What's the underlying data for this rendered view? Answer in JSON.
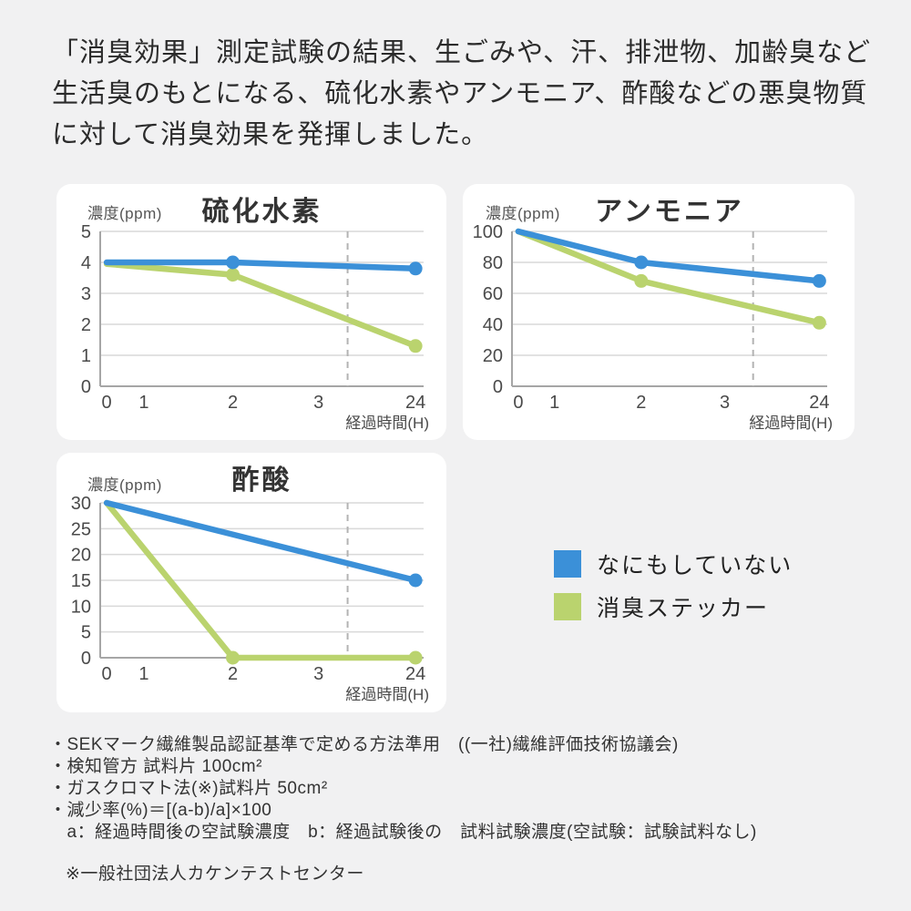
{
  "page": {
    "background": "#F1F1F2",
    "card_background": "#FFFFFF"
  },
  "header": {
    "text": "「消臭効果」測定試験の結果、生ごみや、汗、排泄物、加齢臭など生活臭のもとになる、硫化水素やアンモニア、酢酸などの悪臭物質に対して消臭効果を発揮しました。"
  },
  "colors": {
    "untreated_blue": "#3B90D8",
    "sticker_green": "#BAD36E",
    "grid": "#D9D9D9",
    "axis": "#A6A6A6",
    "dash": "#B3B3B3",
    "tick_text": "#4A4A4A"
  },
  "legend": {
    "items": [
      {
        "label": "なにもしていない",
        "color": "#3B90D8"
      },
      {
        "label": "消臭ステッカー",
        "color": "#BAD36E"
      }
    ]
  },
  "chart_data": [
    {
      "type": "line",
      "title": "硫化水素",
      "ylabel": "濃度(ppm)",
      "xlabel": "経過時間(H)",
      "ylim": [
        0,
        5
      ],
      "yticks": [
        0,
        1,
        2,
        3,
        4,
        5
      ],
      "xticks": [
        0,
        1,
        2,
        3,
        24
      ],
      "x_positions": {
        "0": 0.02,
        "1": 0.135,
        "2": 0.41,
        "3": 0.675,
        "24": 0.975
      },
      "dashed_x": 0.765,
      "grid": true,
      "legend_position": "external",
      "series": [
        {
          "name": "なにもしていない",
          "color": "#3B90D8",
          "x": [
            0,
            2,
            24
          ],
          "values": [
            4,
            4,
            3.8
          ],
          "markers": [
            2,
            24
          ]
        },
        {
          "name": "消臭ステッカー",
          "color": "#BAD36E",
          "x": [
            0,
            2,
            24
          ],
          "values": [
            3.95,
            3.6,
            1.3
          ],
          "markers": [
            2,
            24
          ]
        }
      ]
    },
    {
      "type": "line",
      "title": "アンモニア",
      "ylabel": "濃度(ppm)",
      "xlabel": "経過時間(H)",
      "ylim": [
        0,
        100
      ],
      "yticks": [
        0,
        20,
        40,
        60,
        80,
        100
      ],
      "xticks": [
        0,
        1,
        2,
        3,
        24
      ],
      "x_positions": {
        "0": 0.02,
        "1": 0.135,
        "2": 0.41,
        "3": 0.675,
        "24": 0.975
      },
      "dashed_x": 0.765,
      "grid": true,
      "legend_position": "external",
      "series": [
        {
          "name": "なにもしていない",
          "color": "#3B90D8",
          "x": [
            0,
            2,
            24
          ],
          "values": [
            100,
            80,
            68
          ],
          "markers": [
            2,
            24
          ]
        },
        {
          "name": "消臭ステッカー",
          "color": "#BAD36E",
          "x": [
            0,
            2,
            24
          ],
          "values": [
            100,
            68,
            41
          ],
          "markers": [
            2,
            24
          ]
        }
      ]
    },
    {
      "type": "line",
      "title": "酢酸",
      "ylabel": "濃度(ppm)",
      "xlabel": "経過時間(H)",
      "ylim": [
        0,
        30
      ],
      "yticks": [
        0,
        5,
        10,
        15,
        20,
        25,
        30
      ],
      "xticks": [
        0,
        1,
        2,
        3,
        24
      ],
      "x_positions": {
        "0": 0.02,
        "1": 0.135,
        "2": 0.41,
        "3": 0.675,
        "24": 0.975
      },
      "dashed_x": 0.765,
      "grid": true,
      "legend_position": "external",
      "series": [
        {
          "name": "なにもしていない",
          "color": "#3B90D8",
          "x": [
            0,
            24
          ],
          "values": [
            30,
            15
          ],
          "markers": [
            24
          ]
        },
        {
          "name": "消臭ステッカー",
          "color": "#BAD36E",
          "x": [
            0,
            2,
            24
          ],
          "values": [
            30,
            0,
            0
          ],
          "markers": [
            2,
            24
          ]
        }
      ]
    }
  ],
  "footnotes": {
    "lines": [
      "・SEKマーク繊維製品認証基準で定める方法準用　((一社)繊維評価技術協議会)",
      "・検知管方 試料片 100cm²",
      "・ガスクロマト法(※)試料片 50cm²",
      "・減少率(%)＝[(a-b)/a]×100",
      "　a：経過時間後の空試験濃度　b：経過試験後の　試料試験濃度(空試験：試験試料なし)"
    ],
    "agency_note": "※一般社団法人カケンテストセンター"
  }
}
